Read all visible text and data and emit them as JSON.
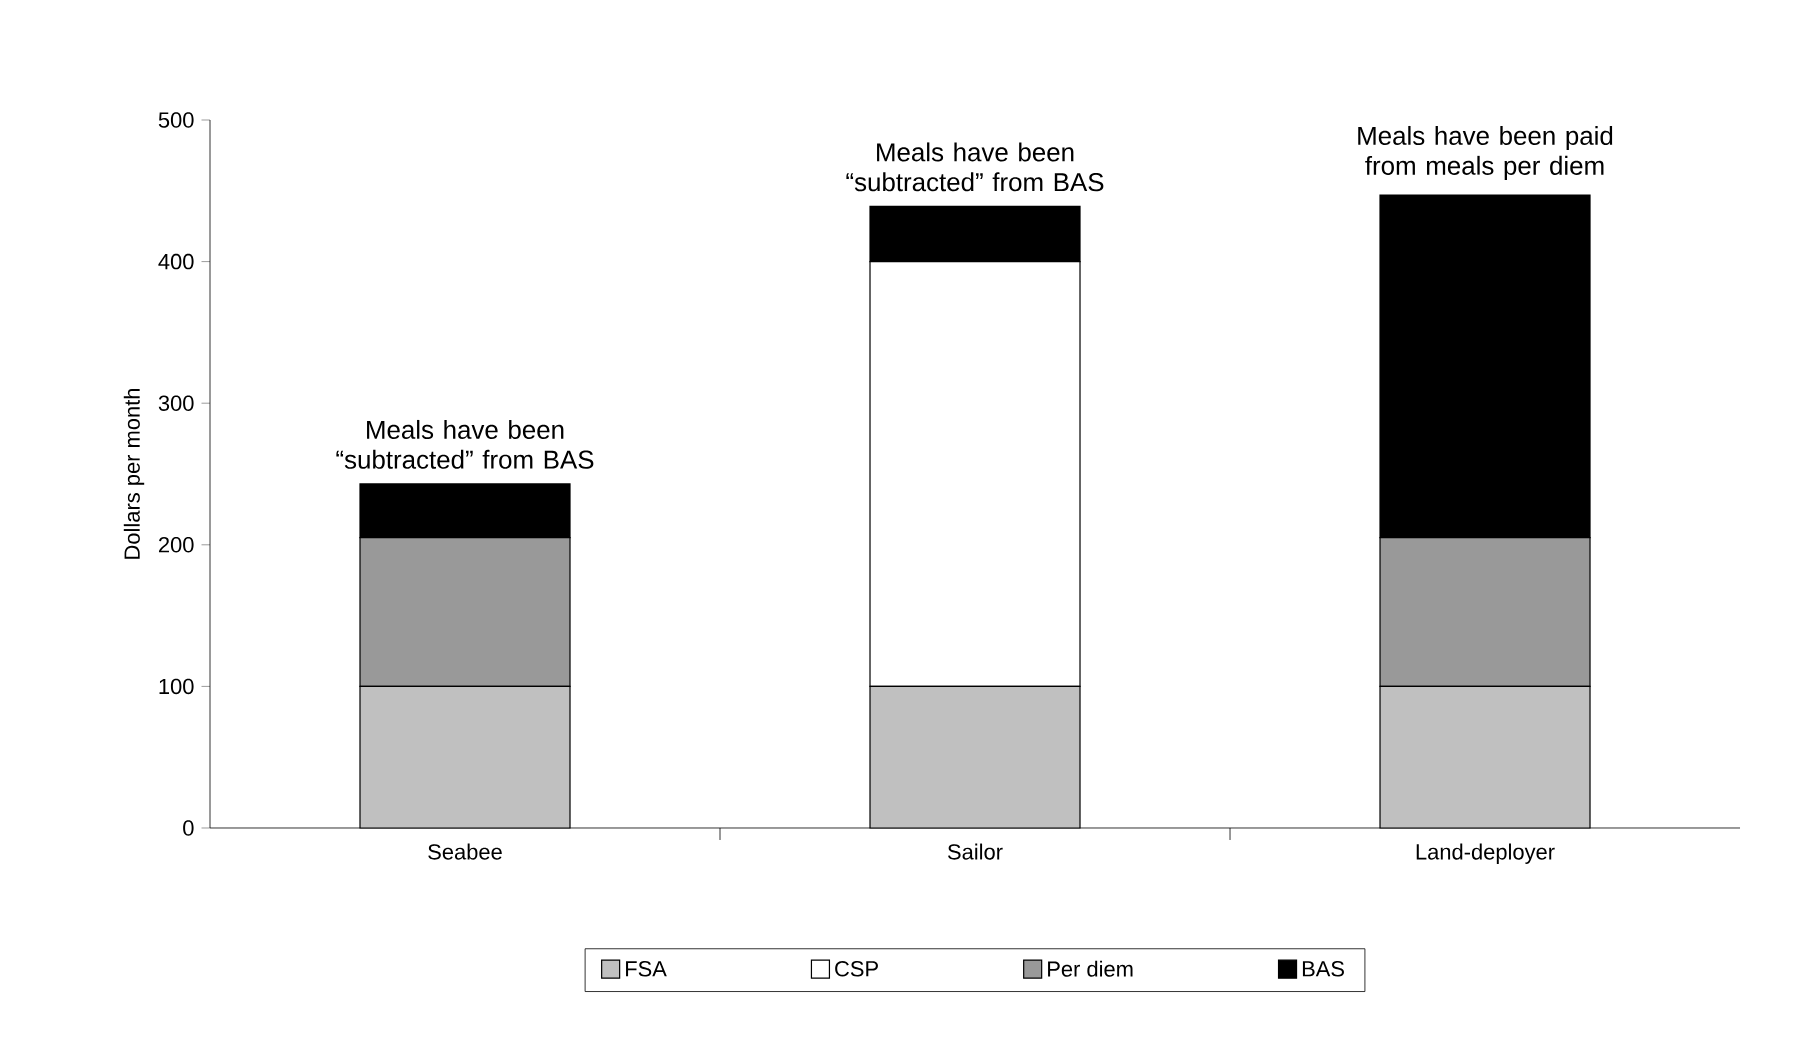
{
  "chart_data": {
    "type": "bar",
    "stacked": true,
    "ylabel": "Dollars per month",
    "categories": [
      "Seabee",
      "Sailor",
      "Land-deployer"
    ],
    "series": [
      {
        "name": "FSA",
        "color": "#c0c0c0",
        "values": [
          100,
          100,
          100
        ]
      },
      {
        "name": "CSP",
        "color": "#ffffff",
        "values": [
          0,
          300,
          0
        ]
      },
      {
        "name": "Per diem",
        "color": "#999999",
        "values": [
          105,
          0,
          105
        ]
      },
      {
        "name": "BAS",
        "color": "#000000",
        "values": [
          38,
          39,
          242
        ]
      }
    ],
    "ylim": [
      0,
      500
    ],
    "yticks": [
      0,
      100,
      200,
      300,
      400,
      500
    ],
    "grid": false,
    "legend": "bottom",
    "annotations": [
      {
        "text": "Meals have been “subtracted” from BAS",
        "x": "Seabee",
        "y": 243
      },
      {
        "text": "Meals have been “subtracted” from BAS",
        "x": "Sailor",
        "y": 439
      },
      {
        "text": "Meals have been paid from meals per diem",
        "x": "Land-deployer",
        "y": 447
      }
    ]
  }
}
